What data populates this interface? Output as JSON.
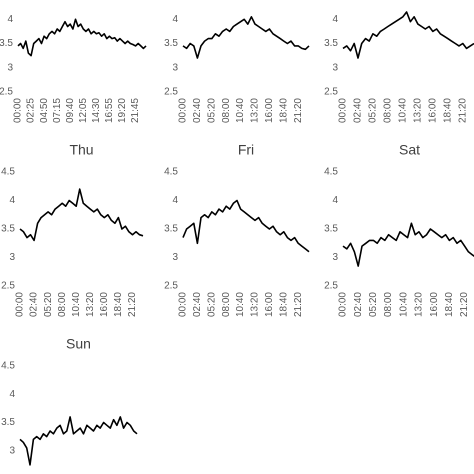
{
  "chart_data": [
    {
      "type": "line",
      "color": "#000000",
      "ylim": [
        2.5,
        4.5
      ],
      "yticks": [
        2.5,
        3,
        3.5,
        4
      ],
      "categories": [
        "00:00",
        null,
        null,
        null,
        null,
        "02:25",
        null,
        null,
        null,
        null,
        "04:50",
        null,
        null,
        null,
        null,
        "07:15",
        null,
        null,
        null,
        null,
        "09:40",
        null,
        null,
        null,
        null,
        "12:05",
        null,
        null,
        null,
        null,
        "14:30",
        null,
        null,
        null,
        null,
        "16:55",
        null,
        null,
        null,
        null,
        "19:20",
        null,
        null,
        null,
        null,
        "21:45",
        null,
        null,
        null,
        null
      ],
      "values": [
        3.45,
        3.5,
        3.4,
        3.55,
        3.3,
        3.25,
        3.5,
        3.55,
        3.6,
        3.5,
        3.65,
        3.6,
        3.7,
        3.75,
        3.7,
        3.8,
        3.75,
        3.85,
        3.95,
        3.85,
        3.9,
        3.8,
        4.0,
        3.85,
        3.9,
        3.8,
        3.75,
        3.8,
        3.7,
        3.75,
        3.7,
        3.72,
        3.65,
        3.7,
        3.6,
        3.65,
        3.6,
        3.62,
        3.55,
        3.6,
        3.55,
        3.5,
        3.55,
        3.5,
        3.48,
        3.45,
        3.5,
        3.45,
        3.4,
        3.45
      ]
    },
    {
      "type": "line",
      "color": "#000000",
      "ylim": [
        2.5,
        4.5
      ],
      "yticks": [
        2.5,
        3,
        3.5,
        4
      ],
      "categories": [
        "00:00",
        null,
        null,
        null,
        "02:40",
        null,
        null,
        null,
        "05:20",
        null,
        null,
        null,
        "08:00",
        null,
        null,
        null,
        "10:40",
        null,
        null,
        null,
        "13:20",
        null,
        null,
        null,
        "16:00",
        null,
        null,
        null,
        "18:40",
        null,
        null,
        null,
        "21:20",
        null,
        null,
        null
      ],
      "values": [
        3.45,
        3.4,
        3.5,
        3.45,
        3.2,
        3.45,
        3.55,
        3.6,
        3.6,
        3.7,
        3.65,
        3.75,
        3.8,
        3.75,
        3.85,
        3.9,
        3.95,
        4.0,
        3.9,
        4.05,
        3.9,
        3.85,
        3.8,
        3.75,
        3.8,
        3.7,
        3.65,
        3.6,
        3.55,
        3.5,
        3.55,
        3.45,
        3.45,
        3.4,
        3.38,
        3.45
      ]
    },
    {
      "type": "line",
      "color": "#000000",
      "ylim": [
        2.5,
        4.5
      ],
      "yticks": [
        2.5,
        3,
        3.5,
        4
      ],
      "categories": [
        "00:00",
        null,
        null,
        null,
        "02:40",
        null,
        null,
        null,
        "05:20",
        null,
        null,
        null,
        "08:00",
        null,
        null,
        null,
        "10:40",
        null,
        null,
        null,
        "13:20",
        null,
        null,
        null,
        "16:00",
        null,
        null,
        null,
        "18:40",
        null,
        null,
        null,
        "21:20",
        null,
        null,
        null
      ],
      "values": [
        3.4,
        3.45,
        3.35,
        3.5,
        3.2,
        3.5,
        3.6,
        3.55,
        3.7,
        3.65,
        3.75,
        3.8,
        3.85,
        3.9,
        3.95,
        4.0,
        4.05,
        4.15,
        3.95,
        4.05,
        3.9,
        3.85,
        3.8,
        3.85,
        3.75,
        3.8,
        3.7,
        3.65,
        3.6,
        3.55,
        3.5,
        3.45,
        3.5,
        3.4,
        3.45,
        3.5
      ]
    },
    {
      "type": "line",
      "title": "Thu",
      "color": "#000000",
      "ylim": [
        2.5,
        4.5
      ],
      "yticks": [
        2.5,
        3,
        3.5,
        4,
        4.5
      ],
      "categories": [
        "00:00",
        null,
        null,
        null,
        "02:40",
        null,
        null,
        null,
        "05:20",
        null,
        null,
        null,
        "08:00",
        null,
        null,
        null,
        "10:40",
        null,
        null,
        null,
        "13:20",
        null,
        null,
        null,
        "16:00",
        null,
        null,
        null,
        "18:40",
        null,
        null,
        null,
        "21:20",
        null,
        null,
        null
      ],
      "values": [
        3.5,
        3.45,
        3.35,
        3.4,
        3.3,
        3.6,
        3.7,
        3.75,
        3.8,
        3.75,
        3.85,
        3.9,
        3.95,
        3.9,
        4.0,
        3.95,
        3.9,
        4.2,
        3.95,
        3.9,
        3.85,
        3.8,
        3.85,
        3.75,
        3.7,
        3.75,
        3.65,
        3.6,
        3.7,
        3.5,
        3.55,
        3.45,
        3.4,
        3.45,
        3.4,
        3.38
      ]
    },
    {
      "type": "line",
      "title": "Fri",
      "color": "#000000",
      "ylim": [
        2.5,
        4.5
      ],
      "yticks": [
        2.5,
        3,
        3.5,
        4,
        4.5
      ],
      "categories": [
        "00:00",
        null,
        null,
        null,
        "02:40",
        null,
        null,
        null,
        "05:20",
        null,
        null,
        null,
        "08:00",
        null,
        null,
        null,
        "10:40",
        null,
        null,
        null,
        "13:20",
        null,
        null,
        null,
        "16:00",
        null,
        null,
        null,
        "18:40",
        null,
        null,
        null,
        "21:20",
        null,
        null,
        null
      ],
      "values": [
        3.35,
        3.5,
        3.55,
        3.6,
        3.25,
        3.7,
        3.75,
        3.7,
        3.8,
        3.75,
        3.85,
        3.8,
        3.9,
        3.85,
        3.95,
        4.0,
        3.85,
        3.8,
        3.75,
        3.7,
        3.65,
        3.7,
        3.6,
        3.55,
        3.5,
        3.55,
        3.45,
        3.4,
        3.45,
        3.35,
        3.3,
        3.35,
        3.25,
        3.2,
        3.15,
        3.1
      ]
    },
    {
      "type": "line",
      "title": "Sat",
      "color": "#000000",
      "ylim": [
        2.5,
        4.5
      ],
      "yticks": [
        2.5,
        3,
        3.5,
        4,
        4.5
      ],
      "categories": [
        "00:00",
        null,
        null,
        null,
        "02:40",
        null,
        null,
        null,
        "05:20",
        null,
        null,
        null,
        "08:00",
        null,
        null,
        null,
        "10:40",
        null,
        null,
        null,
        "13:20",
        null,
        null,
        null,
        "16:00",
        null,
        null,
        null,
        "18:40",
        null,
        null,
        null,
        "21:20",
        null,
        null,
        null
      ],
      "values": [
        3.2,
        3.15,
        3.25,
        3.1,
        2.85,
        3.2,
        3.25,
        3.3,
        3.3,
        3.25,
        3.35,
        3.3,
        3.4,
        3.35,
        3.3,
        3.45,
        3.4,
        3.35,
        3.6,
        3.4,
        3.45,
        3.35,
        3.4,
        3.5,
        3.45,
        3.4,
        3.35,
        3.4,
        3.3,
        3.35,
        3.25,
        3.3,
        3.2,
        3.1,
        3.05,
        3.0
      ]
    },
    {
      "type": "line",
      "title": "Sun",
      "color": "#000000",
      "ylim": [
        2.5,
        4.5
      ],
      "yticks": [
        3,
        3.5,
        4,
        4.5
      ],
      "values": [
        3.2,
        3.15,
        3.05,
        2.75,
        3.2,
        3.25,
        3.2,
        3.3,
        3.25,
        3.35,
        3.3,
        3.4,
        3.45,
        3.3,
        3.35,
        3.6,
        3.3,
        3.35,
        3.4,
        3.3,
        3.45,
        3.4,
        3.35,
        3.45,
        3.4,
        3.5,
        3.45,
        3.4,
        3.55,
        3.45,
        3.6,
        3.4,
        3.5,
        3.45,
        3.35,
        3.3
      ]
    }
  ]
}
